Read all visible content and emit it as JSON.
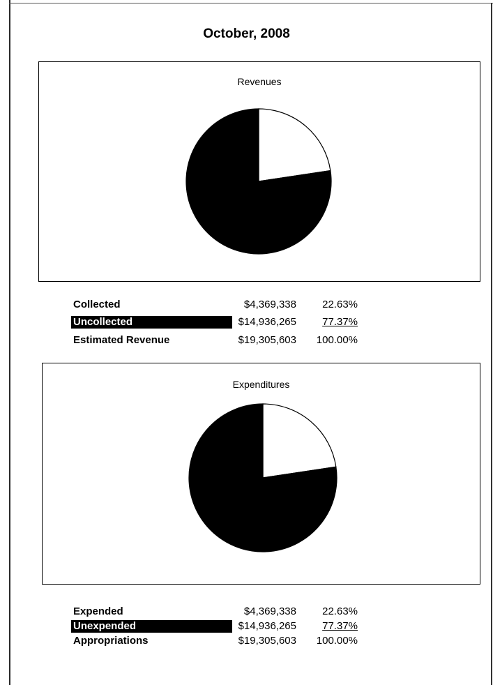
{
  "title": "October, 2008",
  "chart_data": [
    {
      "type": "pie",
      "title": "Revenues",
      "slices": [
        {
          "label": "Collected",
          "value": 22.63,
          "color": "#ffffff"
        },
        {
          "label": "Uncollected",
          "value": 77.37,
          "color": "#000000"
        }
      ]
    },
    {
      "type": "pie",
      "title": "Expenditures",
      "slices": [
        {
          "label": "Expended",
          "value": 22.63,
          "color": "#ffffff"
        },
        {
          "label": "Unexpended",
          "value": 77.37,
          "color": "#000000"
        }
      ]
    }
  ],
  "revenue_table": {
    "rows": [
      {
        "label": "Collected",
        "amount": "$4,369,338",
        "percent": "22.63%"
      },
      {
        "label": "Uncollected",
        "amount": "$14,936,265",
        "percent": "77.37%"
      },
      {
        "label": "Estimated Revenue",
        "amount": "$19,305,603",
        "percent": "100.00%"
      }
    ]
  },
  "expenditure_table": {
    "rows": [
      {
        "label": "Expended",
        "amount": "$4,369,338",
        "percent": "22.63%"
      },
      {
        "label": "Unexpended",
        "amount": "$14,936,265",
        "percent": "77.37%"
      },
      {
        "label": "Appropriations",
        "amount": "$19,305,603",
        "percent": "100.00%"
      }
    ]
  }
}
